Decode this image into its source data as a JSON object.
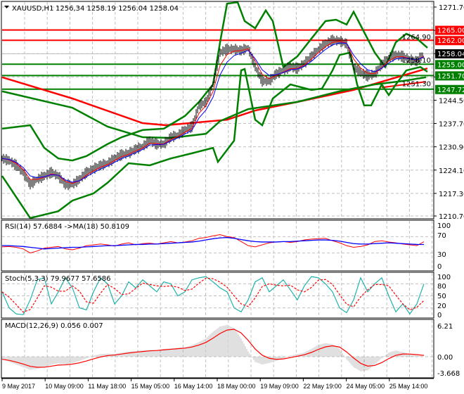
{
  "header": {
    "symbol": "XAUUSD,H1",
    "ohlc": "1256,34 1258.19 1256.04 1258.04"
  },
  "levels": [
    {
      "price": 1265.0,
      "label": "1265.00",
      "color": "#ff0000"
    },
    {
      "price": 1262.0,
      "label": "1262.00",
      "color": "#ff0000"
    },
    {
      "price": 1255.0,
      "label": "1255.00",
      "color": "#008000"
    },
    {
      "price": 1251.7,
      "label": "1251.70",
      "color": "#008000"
    },
    {
      "price": 1247.72,
      "label": "1247.72",
      "color": "#008000"
    }
  ],
  "current_price": {
    "label": "1258.04",
    "color": "#000000"
  },
  "indicators": {
    "rsi_label": "RSI(14) 57.6884  ->MA(18) 50.8109",
    "stoch_label": "Stoch(5,3,3) 79.9677 57.6586",
    "macd_label": "MACD(12,26,9) 0.056 0.007"
  },
  "time_axis": [
    "9 May 2017",
    "10 May 09:00",
    "11 May 18:00",
    "15 May 05:00",
    "16 May 14:00",
    "18 May 00:00",
    "19 May 09:00",
    "22 May 19:00",
    "24 May 05:00",
    "25 May 14:00"
  ],
  "chart_data": [
    {
      "type": "line",
      "title": "XAUUSD,H1",
      "ylim": [
        1210.7,
        1271.7
      ],
      "yticks": [
        "1271.70",
        "1264.90",
        "1258.10",
        "1251.30",
        "1244.50",
        "1237.70",
        "1230.90",
        "1224.10",
        "1217.30",
        "1210.70"
      ],
      "ytick_values": [
        1271.7,
        1264.9,
        1258.1,
        1251.3,
        1244.5,
        1237.7,
        1230.9,
        1224.1,
        1217.3,
        1210.7
      ],
      "grid": true,
      "close": [
        1227.5,
        1226.9,
        1225.5,
        1223.4,
        1219.9,
        1221.4,
        1222.4,
        1223.4,
        1222.4,
        1219.9,
        1219.9,
        1221.4,
        1223.4,
        1224.5,
        1225.5,
        1226.1,
        1227.5,
        1228.6,
        1229.0,
        1230.2,
        1231.0,
        1232.7,
        1231.7,
        1231.7,
        1233.7,
        1234.3,
        1235.8,
        1236.8,
        1242.9,
        1244.0,
        1249.1,
        1258.4,
        1259.4,
        1259.4,
        1259.0,
        1259.8,
        1254.2,
        1250.1,
        1250.1,
        1252.2,
        1253.2,
        1254.2,
        1253.8,
        1255.3,
        1257.3,
        1259.4,
        1261.0,
        1262.0,
        1261.8,
        1261.0,
        1254.2,
        1252.6,
        1251.6,
        1252.2,
        1254.9,
        1256.9,
        1257.7,
        1257.3,
        1256.3,
        1255.9,
        1258.04
      ],
      "bollinger_upper": [
        [
          0,
          1236.2
        ],
        [
          4,
          1237.2
        ],
        [
          6,
          1230.6
        ],
        [
          8,
          1227.5
        ],
        [
          10,
          1226.9
        ],
        [
          12,
          1228.2
        ],
        [
          15,
          1231.7
        ],
        [
          17,
          1233.7
        ],
        [
          20,
          1235.8
        ],
        [
          23,
          1236.2
        ],
        [
          26,
          1239.9
        ],
        [
          28,
          1244.0
        ],
        [
          30,
          1249.1
        ],
        [
          31,
          1261.4
        ],
        [
          32,
          1272.7
        ],
        [
          33.5,
          1273.1
        ],
        [
          34.5,
          1267.6
        ],
        [
          36,
          1265.5
        ],
        [
          37.5,
          1270.7
        ],
        [
          38.5,
          1267.6
        ],
        [
          40,
          1254.2
        ],
        [
          42,
          1257.3
        ],
        [
          44,
          1262.5
        ],
        [
          46,
          1267.6
        ],
        [
          47.5,
          1268.0
        ],
        [
          49,
          1266.6
        ],
        [
          50,
          1270.3
        ],
        [
          53,
          1258.4
        ],
        [
          54.5,
          1254.2
        ],
        [
          56,
          1261.4
        ],
        [
          57.5,
          1263.9
        ],
        [
          59,
          1262.5
        ],
        [
          60.5,
          1259.8
        ]
      ],
      "bollinger_lower": [
        [
          0,
          1222.4
        ],
        [
          4,
          1210.1
        ],
        [
          6,
          1211.1
        ],
        [
          8,
          1212.1
        ],
        [
          10,
          1215.2
        ],
        [
          13,
          1217.3
        ],
        [
          15,
          1220.4
        ],
        [
          18,
          1226.1
        ],
        [
          21,
          1225.5
        ],
        [
          24,
          1227.5
        ],
        [
          27,
          1229.0
        ],
        [
          30,
          1230.6
        ],
        [
          30.7,
          1226.5
        ],
        [
          33,
          1232.7
        ],
        [
          34,
          1253.2
        ],
        [
          34.5,
          1253.6
        ],
        [
          36,
          1238.8
        ],
        [
          37,
          1237.2
        ],
        [
          38.5,
          1245.0
        ],
        [
          41,
          1249.1
        ],
        [
          44,
          1247.5
        ],
        [
          45.5,
          1247.9
        ],
        [
          47,
          1253.2
        ],
        [
          48,
          1257.7
        ],
        [
          49.5,
          1258.4
        ],
        [
          50.5,
          1249.1
        ],
        [
          51.5,
          1243.0
        ],
        [
          52.5,
          1243.0
        ],
        [
          54,
          1249.1
        ],
        [
          55,
          1246.0
        ],
        [
          56,
          1249.1
        ],
        [
          57.5,
          1253.2
        ],
        [
          59.5,
          1254.2
        ],
        [
          60.5,
          1252.8
        ]
      ],
      "slow_ma_red": [
        [
          0,
          1251.2
        ],
        [
          10,
          1245.0
        ],
        [
          20,
          1237.8
        ],
        [
          23.3,
          1237.2
        ],
        [
          32,
          1238.8
        ],
        [
          36,
          1241.5
        ],
        [
          42,
          1244.0
        ],
        [
          50,
          1247.5
        ],
        [
          55,
          1250.5
        ],
        [
          60.5,
          1253.8
        ]
      ],
      "ma_red_2": [
        [
          54,
          1248.2
        ],
        [
          60.3,
          1249.9
        ]
      ],
      "slow_ma_green": [
        [
          0,
          1247.1
        ],
        [
          10,
          1242.3
        ],
        [
          15,
          1236.8
        ],
        [
          20,
          1233.7
        ],
        [
          24,
          1233.5
        ],
        [
          29,
          1234.7
        ],
        [
          31,
          1238.4
        ],
        [
          35,
          1241.9
        ],
        [
          42,
          1244.0
        ],
        [
          48,
          1247.1
        ],
        [
          53,
          1249.1
        ],
        [
          57,
          1250.1
        ],
        [
          60.3,
          1251.2
        ]
      ],
      "colors": {
        "bars": "#000000",
        "bollinger": "#008000",
        "slow_ma": "#ff0000",
        "fast_ma_red": "#ff0000",
        "fast_ma_blue": "#0000ff"
      }
    },
    {
      "type": "line",
      "title": "RSI(14)",
      "ylim": [
        0,
        100
      ],
      "yticks": [
        "100",
        "70",
        "30",
        "0"
      ],
      "ytick_values": [
        100,
        70,
        30,
        0
      ],
      "rsi": [
        45,
        46,
        44,
        40,
        30,
        35,
        42,
        44,
        46,
        40,
        38,
        42,
        48,
        50,
        52,
        50,
        47,
        52,
        55,
        50,
        53,
        54,
        52,
        55,
        58,
        55,
        57,
        60,
        66,
        68,
        72,
        75,
        70,
        68,
        58,
        48,
        45,
        50,
        55,
        57,
        58,
        56,
        58,
        62,
        64,
        65,
        66,
        60,
        55,
        48,
        44,
        46,
        50,
        58,
        60,
        57,
        55,
        52,
        50,
        48,
        57.7
      ],
      "rsi_ma": [
        48,
        48,
        47,
        46,
        44,
        42,
        40,
        41,
        42,
        43,
        44,
        44,
        45,
        46,
        47,
        48,
        48,
        49,
        50,
        51,
        51,
        52,
        52,
        53,
        54,
        55,
        56,
        57,
        59,
        62,
        65,
        67,
        68,
        66,
        63,
        60,
        58,
        57,
        57,
        57,
        58,
        58,
        59,
        60,
        61,
        62,
        62,
        61,
        59,
        56,
        53,
        52,
        52,
        53,
        54,
        55,
        54,
        53,
        52,
        51,
        50.8
      ],
      "colors": {
        "rsi": "#ff0000",
        "ma": "#0000ff"
      }
    },
    {
      "type": "line",
      "title": "Stoch(5,3,3)",
      "ylim": [
        0,
        100
      ],
      "yticks": [
        "100",
        "80",
        "50",
        "20",
        "0"
      ],
      "ytick_values": [
        100,
        80,
        50,
        20,
        0
      ],
      "k": [
        60,
        20,
        5,
        3,
        40,
        90,
        95,
        30,
        60,
        95,
        70,
        20,
        15,
        60,
        95,
        80,
        30,
        50,
        85,
        70,
        90,
        75,
        60,
        85,
        80,
        50,
        60,
        90,
        95,
        98,
        85,
        70,
        60,
        20,
        10,
        40,
        85,
        95,
        60,
        75,
        90,
        65,
        40,
        75,
        98,
        95,
        80,
        60,
        20,
        8,
        40,
        95,
        60,
        80,
        95,
        50,
        10,
        30,
        5,
        30,
        80
      ],
      "colors": {
        "k": "#20b2aa",
        "d": "#ff0000"
      }
    },
    {
      "type": "bar",
      "title": "MACD(12,26,9)",
      "ylim": [
        -3.668,
        6.21
      ],
      "yticks": [
        "6.21",
        "0.00",
        "-3.668"
      ],
      "ytick_values": [
        6.21,
        0,
        -3.668
      ],
      "histogram": [
        -0.5,
        -1,
        -1.5,
        -2,
        -2.5,
        -2.3,
        -2,
        -1.5,
        -1.3,
        -1.5,
        -1.2,
        -0.8,
        -0.3,
        0.2,
        0.5,
        0.6,
        0.5,
        0.8,
        1.0,
        1.1,
        1.2,
        1.3,
        1.3,
        1.5,
        1.6,
        1.7,
        1.8,
        2.2,
        2.8,
        3.5,
        4.8,
        5.8,
        6.1,
        5.5,
        3.5,
        1.0,
        -1.0,
        -1.5,
        -1.2,
        -0.8,
        -0.3,
        0.2,
        0.5,
        0.8,
        1.5,
        2.3,
        2.6,
        2.4,
        1.5,
        -0.5,
        -2.0,
        -2.8,
        -2.6,
        -1.5,
        -0.3,
        0.8,
        1.2,
        0.9,
        0.5,
        0.2,
        0.056
      ],
      "colors": {
        "histogram": "#c0c0c0",
        "signal": "#ff0000"
      }
    }
  ]
}
